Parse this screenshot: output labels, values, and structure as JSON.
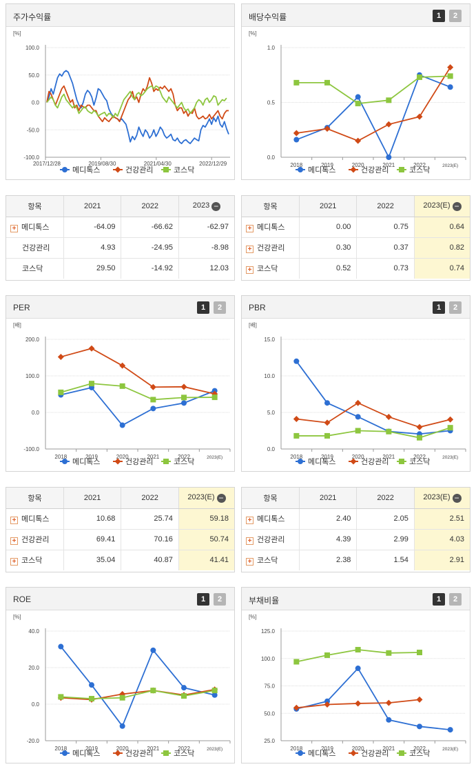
{
  "colors": {
    "medytox": "#2d6fd3",
    "health": "#d04a16",
    "kosdaq": "#8dc63f"
  },
  "legend": [
    "메디톡스",
    "건강관리",
    "코스닥"
  ],
  "tables": [
    {
      "headers": [
        "항목",
        "2021",
        "2022",
        "2023"
      ],
      "has_minus": true,
      "highlight": false,
      "rows": [
        [
          "메디톡스",
          "-64.09",
          "-66.62",
          "-62.97"
        ],
        [
          "건강관리",
          "4.93",
          "-24.95",
          "-8.98"
        ],
        [
          "코스닥",
          "29.50",
          "-14.92",
          "12.03"
        ]
      ],
      "plus": [
        true,
        false,
        false
      ]
    },
    {
      "headers": [
        "항목",
        "2021",
        "2022",
        "2023(E)"
      ],
      "has_minus": true,
      "highlight": true,
      "rows": [
        [
          "메디톡스",
          "0.00",
          "0.75",
          "0.64"
        ],
        [
          "건강관리",
          "0.30",
          "0.37",
          "0.82"
        ],
        [
          "코스닥",
          "0.52",
          "0.73",
          "0.74"
        ]
      ],
      "plus": [
        true,
        true,
        true
      ]
    },
    {
      "headers": [
        "항목",
        "2021",
        "2022",
        "2023(E)"
      ],
      "has_minus": true,
      "highlight": true,
      "rows": [
        [
          "메디톡스",
          "10.68",
          "25.74",
          "59.18"
        ],
        [
          "건강관리",
          "69.41",
          "70.16",
          "50.74"
        ],
        [
          "코스닥",
          "35.04",
          "40.87",
          "41.41"
        ]
      ],
      "plus": [
        true,
        true,
        true
      ]
    },
    {
      "headers": [
        "항목",
        "2021",
        "2022",
        "2023(E)"
      ],
      "has_minus": true,
      "highlight": true,
      "rows": [
        [
          "메디톡스",
          "2.40",
          "2.05",
          "2.51"
        ],
        [
          "건강관리",
          "4.39",
          "2.99",
          "4.03"
        ],
        [
          "코스닥",
          "2.38",
          "1.54",
          "2.91"
        ]
      ],
      "plus": [
        true,
        true,
        true
      ]
    }
  ],
  "chart_data": [
    {
      "type": "line",
      "title": "주가수익률",
      "unit": "[%]",
      "buttons": false,
      "ylim": [
        -100,
        100
      ],
      "yticks": [
        "100.0",
        "50.0",
        "0.0",
        "-50.0",
        "-100.0"
      ],
      "x_tick_labels": [
        "2017/12/28",
        "2019/08/30",
        "2021/04/30",
        "2022/12/29"
      ],
      "x_tick_pos": [
        0,
        0.3,
        0.6,
        0.9
      ],
      "series": [
        {
          "name": "메디톡스",
          "markers": false,
          "values": [
            0,
            10,
            25,
            15,
            30,
            45,
            52,
            48,
            55,
            58,
            55,
            45,
            35,
            20,
            5,
            -5,
            -10,
            0,
            15,
            22,
            18,
            10,
            -5,
            8,
            25,
            22,
            15,
            8,
            3,
            -12,
            -20,
            -25,
            -28,
            -30,
            -33,
            -30,
            -35,
            -40,
            -55,
            -72,
            -62,
            -68,
            -60,
            -45,
            -55,
            -62,
            -50,
            -55,
            -65,
            -60,
            -50,
            -62,
            -55,
            -45,
            -50,
            -60,
            -65,
            -62,
            -58,
            -68,
            -70,
            -65,
            -72,
            -75,
            -70,
            -68,
            -72,
            -75,
            -70,
            -65,
            -68,
            -70,
            -50,
            -42,
            -45,
            -38,
            -30,
            -40,
            -28,
            -35,
            -25,
            -40,
            -45,
            -35,
            -48,
            -58
          ]
        },
        {
          "name": "건강관리",
          "markers": false,
          "values": [
            0,
            20,
            15,
            5,
            -5,
            5,
            15,
            25,
            30,
            20,
            10,
            0,
            5,
            -10,
            -5,
            -15,
            -5,
            -8,
            -10,
            -5,
            -5,
            -10,
            -15,
            -15,
            -25,
            -30,
            -35,
            -28,
            -32,
            -35,
            -30,
            -25,
            -28,
            -30,
            -35,
            -25,
            -15,
            -5,
            5,
            10,
            20,
            5,
            10,
            0,
            15,
            25,
            20,
            30,
            45,
            35,
            20,
            25,
            22,
            28,
            25,
            30,
            25,
            20,
            25,
            15,
            -5,
            -15,
            -10,
            -10,
            -20,
            -15,
            -25,
            -18,
            -20,
            -10,
            -25,
            -30,
            -28,
            -25,
            -30,
            -28,
            -22,
            -30,
            -25,
            -20,
            -15,
            -25,
            -30,
            -20,
            -15,
            -15
          ]
        },
        {
          "name": "코스닥",
          "markers": false,
          "values": [
            0,
            5,
            10,
            5,
            -5,
            -10,
            0,
            10,
            15,
            5,
            0,
            -5,
            -10,
            -5,
            -10,
            -20,
            -15,
            -10,
            -8,
            -15,
            -18,
            -20,
            -15,
            -18,
            -25,
            -22,
            -20,
            -18,
            -25,
            -20,
            -22,
            -28,
            -20,
            -25,
            -15,
            -5,
            5,
            10,
            15,
            20,
            10,
            5,
            15,
            18,
            12,
            15,
            20,
            25,
            28,
            30,
            25,
            30,
            28,
            20,
            10,
            5,
            0,
            10,
            5,
            0,
            -5,
            -10,
            -5,
            0,
            -10,
            -15,
            -12,
            -20,
            -15,
            -10,
            0,
            5,
            2,
            -5,
            5,
            8,
            0,
            5,
            12,
            10,
            -5,
            0,
            5,
            3,
            8
          ]
        }
      ]
    },
    {
      "type": "line",
      "title": "배당수익률",
      "unit": "[%]",
      "buttons": true,
      "ylim": [
        0,
        1
      ],
      "yticks": [
        "1.0",
        "0.5",
        "0.0"
      ],
      "categories": [
        "2018",
        "2019",
        "2020",
        "2021",
        "2022",
        "2023(E)"
      ],
      "series": [
        {
          "name": "메디톡스",
          "marker": "circle",
          "values": [
            0.16,
            0.27,
            0.55,
            0.0,
            0.75,
            0.64
          ]
        },
        {
          "name": "건강관리",
          "marker": "diamond",
          "values": [
            0.22,
            0.26,
            0.15,
            0.3,
            0.37,
            0.82
          ]
        },
        {
          "name": "코스닥",
          "marker": "square",
          "values": [
            0.68,
            0.68,
            0.49,
            0.52,
            0.73,
            0.74
          ]
        }
      ]
    },
    {
      "type": "line",
      "title": "PER",
      "unit": "[배]",
      "buttons": true,
      "ylim": [
        -100,
        200
      ],
      "yticks": [
        "200.0",
        "100.0",
        "0.0",
        "-100.0"
      ],
      "categories": [
        "2018",
        "2019",
        "2020",
        "2021",
        "2022",
        "2023(E)"
      ],
      "series": [
        {
          "name": "메디톡스",
          "marker": "circle",
          "values": [
            48,
            68,
            -35,
            10.68,
            25.74,
            59.18
          ]
        },
        {
          "name": "건강관리",
          "marker": "diamond",
          "values": [
            152,
            175,
            128,
            69.41,
            70.16,
            50.74
          ]
        },
        {
          "name": "코스닥",
          "marker": "square",
          "values": [
            55,
            79,
            72,
            35.04,
            40.87,
            41.41
          ]
        }
      ]
    },
    {
      "type": "line",
      "title": "PBR",
      "unit": "[배]",
      "buttons": true,
      "ylim": [
        0,
        15
      ],
      "yticks": [
        "15.0",
        "10.0",
        "5.0",
        "0.0"
      ],
      "categories": [
        "2018",
        "2019",
        "2020",
        "2021",
        "2022",
        "2023(E)"
      ],
      "series": [
        {
          "name": "메디톡스",
          "marker": "circle",
          "values": [
            12.0,
            6.3,
            4.4,
            2.4,
            2.05,
            2.51
          ]
        },
        {
          "name": "건강관리",
          "marker": "diamond",
          "values": [
            4.1,
            3.6,
            6.3,
            4.39,
            2.99,
            4.03
          ]
        },
        {
          "name": "코스닥",
          "marker": "square",
          "values": [
            1.8,
            1.8,
            2.5,
            2.38,
            1.54,
            2.91
          ]
        }
      ]
    },
    {
      "type": "line",
      "title": "ROE",
      "unit": "[%]",
      "buttons": true,
      "ylim": [
        -20,
        40
      ],
      "yticks": [
        "40.0",
        "20.0",
        "0.0",
        "-20.0"
      ],
      "categories": [
        "2018",
        "2019",
        "2020",
        "2021",
        "2022",
        "2023(E)"
      ],
      "series": [
        {
          "name": "메디톡스",
          "marker": "circle",
          "values": [
            31.5,
            10.5,
            -12,
            29.5,
            9,
            5
          ]
        },
        {
          "name": "건강관리",
          "marker": "diamond",
          "values": [
            3.5,
            2.5,
            5.5,
            7.5,
            5,
            8
          ]
        },
        {
          "name": "코스닥",
          "marker": "square",
          "values": [
            4,
            3,
            3.5,
            7.5,
            4.5,
            7.5
          ]
        }
      ]
    },
    {
      "type": "line",
      "title": "부채비율",
      "unit": "[%]",
      "buttons": true,
      "ylim": [
        25,
        125
      ],
      "yticks": [
        "125.0",
        "100.0",
        "75.0",
        "50.0",
        "25.0"
      ],
      "categories": [
        "2018",
        "2019",
        "2020",
        "2021",
        "2022",
        "2023(E)"
      ],
      "series": [
        {
          "name": "메디톡스",
          "marker": "circle",
          "values": [
            54,
            61,
            91,
            44,
            38,
            35
          ]
        },
        {
          "name": "건강관리",
          "marker": "diamond",
          "values": [
            55,
            58,
            59,
            59.5,
            62.5,
            null
          ]
        },
        {
          "name": "코스닥",
          "marker": "square",
          "values": [
            97,
            103,
            108,
            105,
            105.5,
            null
          ]
        }
      ]
    }
  ]
}
